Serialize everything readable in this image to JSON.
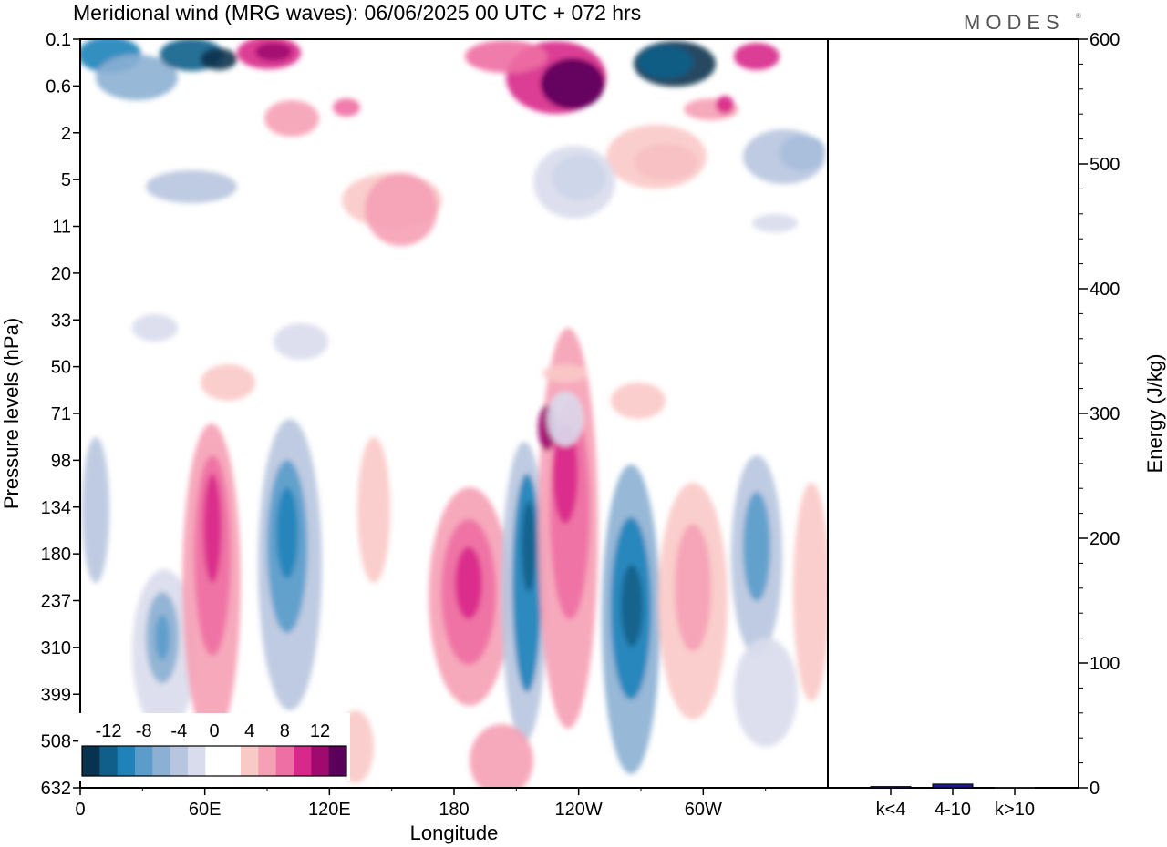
{
  "header": {
    "title": "Meridional wind (MRG waves):  06/06/2025  00 UTC  + 072 hrs",
    "brand": "MODES",
    "brand_mark": "®"
  },
  "chart_data": {
    "type": "heatmap",
    "title": "Meridional wind (MRG waves):  06/06/2025  00 UTC  + 072 hrs",
    "xlabel": "Longitude",
    "ylabel": "Pressure levels (hPa)",
    "y2label": "Energy (J/kg)",
    "x_ticks": [
      "0",
      "60E",
      "120E",
      "180",
      "120W",
      "60W"
    ],
    "y_ticks": [
      "0.1",
      "0.6",
      "2",
      "5",
      "11",
      "20",
      "33",
      "50",
      "71",
      "98",
      "134",
      "180",
      "237",
      "310",
      "399",
      "508",
      "632"
    ],
    "y_scale": "log",
    "colorbar": {
      "tick_labels": [
        "-12",
        "-8",
        "-4",
        "0",
        "4",
        "8",
        "12"
      ],
      "levels": [
        -14,
        -12,
        -10,
        -8,
        -6,
        -4,
        -2,
        0,
        2,
        4,
        6,
        8,
        10,
        12,
        14
      ],
      "colors": [
        "#08334f",
        "#0f5f8a",
        "#1f83ba",
        "#5b9ccb",
        "#8cb0d3",
        "#b8c5df",
        "#d9dcec",
        "#ffffff",
        "#ffffff",
        "#f9c9c6",
        "#f6a0b5",
        "#ee6fa3",
        "#d8288a",
        "#a0096e",
        "#5b005a"
      ]
    },
    "energy_bars": {
      "categories": [
        "k<4",
        "4-10",
        "k>10"
      ],
      "values": [
        1,
        3,
        0
      ],
      "ylim": [
        0,
        600
      ],
      "y_ticks": [
        0,
        100,
        200,
        300,
        400,
        500,
        600
      ],
      "bar_color": "#1a1a8c"
    }
  }
}
